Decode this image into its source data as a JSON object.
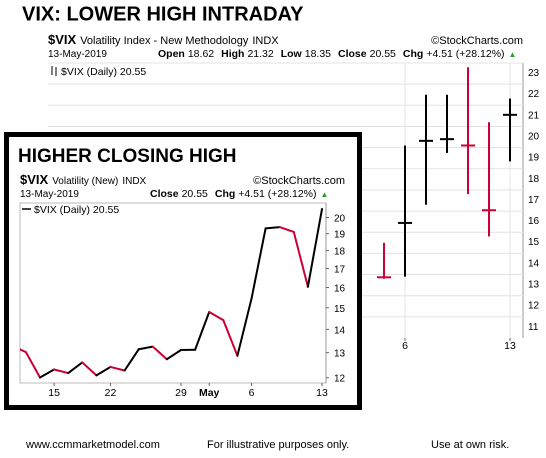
{
  "chart_data": [
    {
      "type": "ohlc",
      "title": "VIX:  LOWER HIGH INTRADAY",
      "symbol": "$VIX",
      "name": "Volatility Index - New Methodology",
      "exchange": "INDX",
      "source": "©StockCharts.com",
      "date": "13-May-2019",
      "quote": [
        {
          "label": "Open",
          "value": 18.62
        },
        {
          "label": "High",
          "value": 21.32
        },
        {
          "label": "Low",
          "value": 18.35
        },
        {
          "label": "Close",
          "value": 20.55
        },
        {
          "label": "Chg",
          "value": "+4.51 (+28.12%)"
        }
      ],
      "trend": "▲",
      "legend": "$VIX (Daily) 20.55",
      "categories": [
        null,
        "6",
        null,
        null,
        null,
        null,
        "13"
      ],
      "high": [
        14.5,
        19.1,
        21.5,
        21.5,
        22.8,
        20.2,
        21.32
      ],
      "low": [
        12.8,
        12.9,
        16.3,
        18.75,
        16.8,
        14.8,
        18.35
      ],
      "close": [
        12.87,
        15.44,
        19.32,
        19.4,
        19.1,
        16.04,
        20.55
      ],
      "up_color": "#000000",
      "down_color": "#cc0033",
      "ylim": [
        10,
        23
      ],
      "yticks": [
        11,
        12,
        13,
        14,
        15,
        16,
        17,
        18,
        19,
        20,
        21,
        22,
        23
      ],
      "grid": true
    },
    {
      "type": "line",
      "title": "HIGHER CLOSING HIGH",
      "symbol": "$VIX",
      "name": "Volatility (New)",
      "exchange": "INDX",
      "source": "©StockCharts.com",
      "date": "13-May-2019",
      "quote": [
        {
          "label": "Close",
          "value": 20.55
        },
        {
          "label": "Chg",
          "value": "+4.51 (+28.12%)"
        }
      ],
      "trend": "▲",
      "legend": "$VIX (Daily) 20.55",
      "categories": [
        null,
        null,
        null,
        "15",
        null,
        null,
        null,
        "22",
        null,
        null,
        null,
        null,
        "29",
        null,
        "May",
        null,
        null,
        "6",
        null,
        null,
        null,
        null,
        "13"
      ],
      "values": [
        13.3,
        13.02,
        12.01,
        12.32,
        12.18,
        12.6,
        12.09,
        12.42,
        12.28,
        13.14,
        13.25,
        12.73,
        13.11,
        13.12,
        14.8,
        14.42,
        12.87,
        15.44,
        19.32,
        19.4,
        19.1,
        16.04,
        20.55
      ],
      "up_color": "#000000",
      "down_color": "#cc0033",
      "log_scale": true,
      "ylim": [
        11.8,
        20.95
      ],
      "yticks": [
        12,
        13,
        14,
        15,
        16,
        17,
        18,
        19,
        20
      ],
      "grid": false
    }
  ],
  "footer": [
    "www.ccmmarketmodel.com",
    "For illustrative purposes only.",
    "Use at own risk."
  ]
}
